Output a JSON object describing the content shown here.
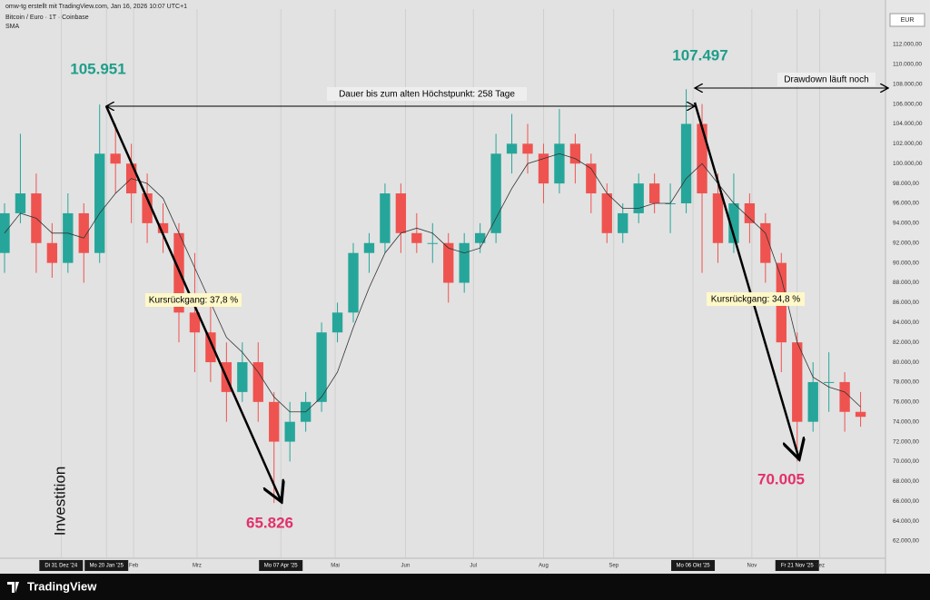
{
  "header": {
    "creator": "omw-tg erstellt mit TradingView.com, Jan 16, 2026 10:07 UTC+1",
    "symbol": "Bitcoin / Euro · 1T · Coinbase"
  },
  "footer": {
    "brand": "TradingView"
  },
  "chart_data": {
    "type": "candlestick",
    "currency": "EUR",
    "up_color": "#26a69a",
    "down_color": "#ef5350",
    "xlim": [
      -27,
      364
    ],
    "ylim": [
      60260,
      115560
    ],
    "xticks": [
      {
        "value": 0,
        "label": "Di 31 Dez '24"
      },
      {
        "value": 20,
        "label": "Mo 20 Jan '25"
      },
      {
        "value": 32,
        "label": "Feb"
      },
      {
        "value": 60,
        "label": "Mrz"
      },
      {
        "value": 97,
        "label": "Mo 07 Apr '25"
      },
      {
        "value": 121,
        "label": "Mai"
      },
      {
        "value": 152,
        "label": "Jun"
      },
      {
        "value": 182,
        "label": "Jul"
      },
      {
        "value": 213,
        "label": "Aug"
      },
      {
        "value": 244,
        "label": "Sep"
      },
      {
        "value": 279,
        "label": "Mo 06 Okt '25"
      },
      {
        "value": 305,
        "label": "Nov"
      },
      {
        "value": 325,
        "label": "Fr 21 Nov '25"
      },
      {
        "value": 335,
        "label": "Dez"
      }
    ],
    "yticks": [
      {
        "value": 62000,
        "label": "62.000,00"
      },
      {
        "value": 64000,
        "label": "64.000,00"
      },
      {
        "value": 66000,
        "label": "66.000,00"
      },
      {
        "value": 68000,
        "label": "68.000,00"
      },
      {
        "value": 70000,
        "label": "70.000,00"
      },
      {
        "value": 72000,
        "label": "72.000,00"
      },
      {
        "value": 74000,
        "label": "74.000,00"
      },
      {
        "value": 76000,
        "label": "76.000,00"
      },
      {
        "value": 78000,
        "label": "78.000,00"
      },
      {
        "value": 80000,
        "label": "80.000,00"
      },
      {
        "value": 82000,
        "label": "82.000,00"
      },
      {
        "value": 84000,
        "label": "84.000,00"
      },
      {
        "value": 86000,
        "label": "86.000,00"
      },
      {
        "value": 88000,
        "label": "88.000,00"
      },
      {
        "value": 90000,
        "label": "90.000,00"
      },
      {
        "value": 92000,
        "label": "92.000,00"
      },
      {
        "value": 94000,
        "label": "94.000,00"
      },
      {
        "value": 96000,
        "label": "96.000,00"
      },
      {
        "value": 98000,
        "label": "98.000,00"
      },
      {
        "value": 100000,
        "label": "100.000,00"
      },
      {
        "value": 102000,
        "label": "102.000,00"
      },
      {
        "value": 104000,
        "label": "104.000,00"
      },
      {
        "value": 106000,
        "label": "106.000,00"
      },
      {
        "value": 108000,
        "label": "108.000,00"
      },
      {
        "value": 110000,
        "label": "110.000,00"
      },
      {
        "value": 112000,
        "label": "112.000,00"
      }
    ],
    "x": [
      -25,
      -18,
      -11,
      -4,
      3,
      10,
      17,
      24,
      31,
      38,
      45,
      52,
      59,
      66,
      73,
      80,
      87,
      94,
      101,
      108,
      115,
      122,
      129,
      136,
      143,
      150,
      157,
      164,
      171,
      178,
      185,
      192,
      199,
      206,
      213,
      220,
      227,
      234,
      241,
      248,
      255,
      262,
      269,
      276,
      283,
      290,
      297,
      304,
      311,
      318,
      325,
      332,
      339,
      346,
      353
    ],
    "open": [
      91000,
      95000,
      97000,
      92000,
      90000,
      95000,
      91000,
      101000,
      100000,
      97000,
      94000,
      93000,
      85000,
      83000,
      80000,
      77000,
      80000,
      76000,
      72000,
      74000,
      76000,
      83000,
      85000,
      91000,
      92000,
      97000,
      93000,
      92000,
      92000,
      88000,
      92000,
      93000,
      101000,
      102000,
      101000,
      98000,
      102000,
      100000,
      97000,
      93000,
      95000,
      98000,
      96000,
      96000,
      104000,
      97000,
      92000,
      96000,
      94000,
      90000,
      82000,
      74000,
      78000,
      78000,
      75000
    ],
    "high": [
      96000,
      103000,
      99000,
      94000,
      97000,
      96000,
      105951,
      104000,
      102000,
      99000,
      96000,
      94000,
      91000,
      86000,
      82000,
      82000,
      82000,
      77000,
      76000,
      77000,
      84000,
      86000,
      92000,
      93000,
      98000,
      98000,
      95000,
      94000,
      93000,
      93000,
      94000,
      103000,
      105000,
      104000,
      102000,
      105500,
      103000,
      101000,
      98000,
      96000,
      99000,
      99000,
      98000,
      107497,
      106000,
      99000,
      99000,
      97000,
      95000,
      91000,
      83000,
      80000,
      81000,
      79000,
      77000
    ],
    "low": [
      89000,
      94000,
      89000,
      88500,
      89000,
      88000,
      90000,
      97000,
      94000,
      92000,
      91000,
      82000,
      79000,
      78000,
      74000,
      76000,
      74000,
      65826,
      70000,
      73000,
      75000,
      82000,
      84000,
      89000,
      91000,
      91000,
      91000,
      90000,
      86000,
      87000,
      91000,
      92000,
      99000,
      99000,
      96000,
      97000,
      98000,
      95000,
      92000,
      92000,
      94000,
      95000,
      93000,
      95000,
      89000,
      90000,
      91000,
      92000,
      88000,
      79000,
      70005,
      73000,
      75000,
      73000,
      73500
    ],
    "close": [
      95000,
      97000,
      92000,
      90000,
      95000,
      91000,
      101000,
      100000,
      97000,
      94000,
      93000,
      85000,
      83000,
      80000,
      77000,
      80000,
      76000,
      72000,
      74000,
      76000,
      83000,
      85000,
      91000,
      92000,
      97000,
      93000,
      92000,
      92000,
      88000,
      92000,
      93000,
      101000,
      102000,
      101000,
      98000,
      102000,
      100000,
      97000,
      93000,
      95000,
      98000,
      96000,
      96000,
      104000,
      97000,
      92000,
      96000,
      94000,
      90000,
      82000,
      74000,
      78000,
      78000,
      75000,
      74500
    ],
    "indicator": {
      "name": "SMA",
      "color": "#333333",
      "values": [
        93000,
        95000,
        94500,
        93000,
        93000,
        92500,
        95000,
        97000,
        98500,
        98000,
        96500,
        93000,
        89500,
        86000,
        82500,
        81000,
        79000,
        76500,
        75000,
        75000,
        76500,
        79000,
        83500,
        87500,
        91000,
        93000,
        93500,
        93000,
        91500,
        91000,
        91500,
        94500,
        97500,
        100000,
        100500,
        101000,
        100500,
        99500,
        97000,
        95500,
        95500,
        96000,
        96000,
        98500,
        100000,
        98000,
        96000,
        94500,
        93000,
        88500,
        82000,
        78500,
        77500,
        77000,
        75500
      ]
    },
    "annotations": {
      "high_1": "105.951",
      "high_2": "107.497",
      "low_1": "65.826",
      "low_2": "70.005",
      "duration": "Dauer bis zum alten Höchstpunkt: 258 Tage",
      "drawdown": "Drawdown läuft noch",
      "decline_1": "Kursrückgang: 37,8 %",
      "decline_2": "Kursrückgang: 34,8 %",
      "investment": "Investition"
    }
  }
}
